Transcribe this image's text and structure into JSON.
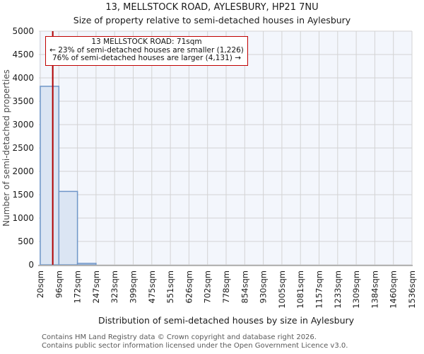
{
  "title": "13, MELLSTOCK ROAD, AYLESBURY, HP21 7NU",
  "subtitle": "Size of property relative to semi-detached houses in Aylesbury",
  "annotation": {
    "line1": "13 MELLSTOCK ROAD: 71sqm",
    "line2": "← 23% of semi-detached houses are smaller (1,226)",
    "line3": "76% of semi-detached houses are larger (4,131) →"
  },
  "footer": {
    "line1": "Contains HM Land Registry data © Crown copyright and database right 2026.",
    "line2": "Contains public sector information licensed under the Open Government Licence v3.0."
  },
  "chart_data": {
    "type": "bar",
    "title": "Size of property relative to semi-detached houses in Aylesbury",
    "xlabel": "Distribution of semi-detached houses by size in Aylesbury",
    "ylabel": "Number of semi-detached properties",
    "x_tick_labels": [
      "20sqm",
      "96sqm",
      "172sqm",
      "247sqm",
      "323sqm",
      "399sqm",
      "475sqm",
      "551sqm",
      "626sqm",
      "702sqm",
      "778sqm",
      "854sqm",
      "930sqm",
      "1005sqm",
      "1081sqm",
      "1157sqm",
      "1233sqm",
      "1309sqm",
      "1384sqm",
      "1460sqm",
      "1536sqm"
    ],
    "bin_edges_sqm": [
      20,
      96,
      172,
      247,
      323,
      399,
      475,
      551,
      626,
      702,
      778,
      854,
      930,
      1005,
      1081,
      1157,
      1233,
      1309,
      1384,
      1460,
      1536
    ],
    "values": [
      3820,
      1570,
      30,
      0,
      0,
      0,
      0,
      0,
      0,
      0,
      0,
      0,
      0,
      0,
      0,
      0,
      0,
      0,
      0,
      0
    ],
    "ylim": [
      0,
      5000
    ],
    "y_ticks": [
      0,
      500,
      1000,
      1500,
      2000,
      2500,
      3000,
      3500,
      4000,
      4500,
      5000
    ],
    "grid": true,
    "legend": "none",
    "marker": {
      "value_sqm": 71,
      "smaller_count": 1226,
      "smaller_pct": 23,
      "larger_count": 4131,
      "larger_pct": 76
    },
    "colors": {
      "bar_fill": "#dbe5f3",
      "bar_border": "#6f96c8",
      "marker_line": "#b00000",
      "annotation_border": "#c00000",
      "plot_bg": "#f3f6fc",
      "grid": "#d3d3d3",
      "axis_line": "#b3b3b3",
      "tick_text": "#1a1a1a",
      "axis_label_text": "#4d4d4d"
    }
  }
}
